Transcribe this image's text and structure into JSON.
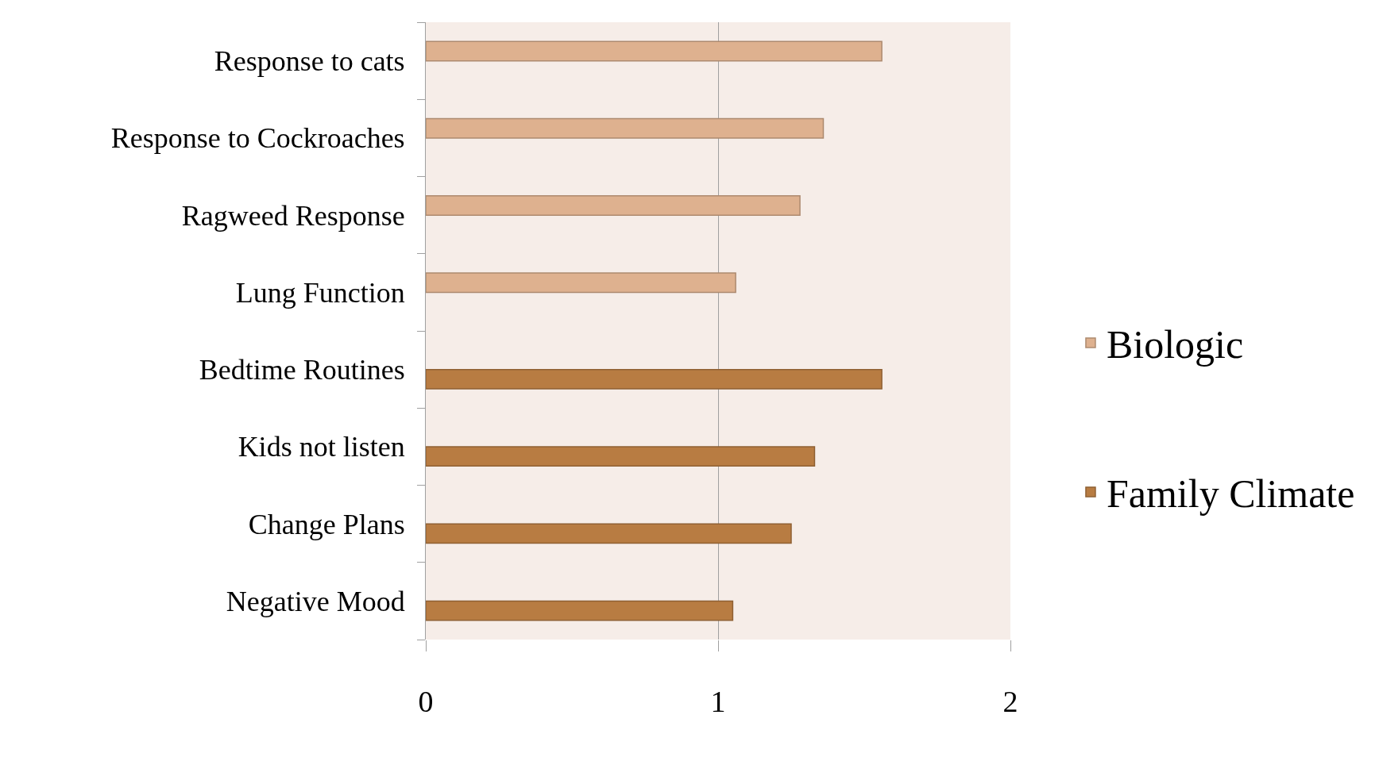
{
  "chart_data": {
    "type": "bar",
    "orientation": "horizontal",
    "categories": [
      "Response to cats",
      "Response to Cockroaches",
      "Ragweed Response",
      "Lung Function",
      "Bedtime Routines",
      "Kids not listen",
      "Change Plans",
      "Negative Mood"
    ],
    "series": [
      {
        "name": "Biologic",
        "color": "#deb18f",
        "values": [
          1.56,
          1.36,
          1.28,
          1.06,
          null,
          null,
          null,
          null
        ]
      },
      {
        "name": "Family Climate",
        "color": "#b87c42",
        "values": [
          null,
          null,
          null,
          null,
          1.56,
          1.33,
          1.25,
          1.05
        ]
      }
    ],
    "xlim": [
      0,
      2
    ],
    "xticks": [
      0,
      1,
      2
    ],
    "grid": "x",
    "legend": "right"
  }
}
